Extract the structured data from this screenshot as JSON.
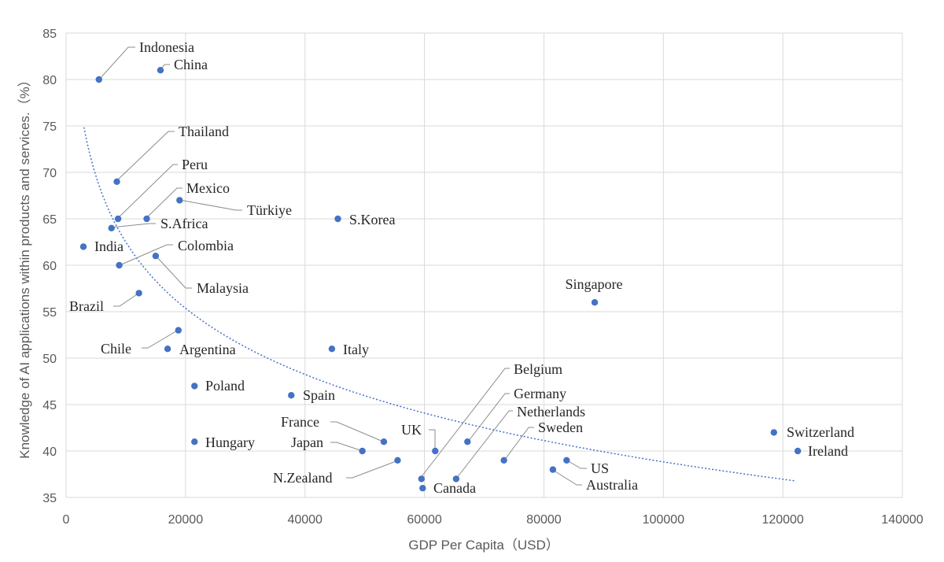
{
  "chart_data": {
    "type": "scatter",
    "title": "",
    "xlabel": "GDP Per Capita（USD）",
    "ylabel": "Knowledge of AI applications within products and services.（%）",
    "xlim": [
      0,
      140000
    ],
    "ylim": [
      35,
      85
    ],
    "x_ticks": [
      0,
      20000,
      40000,
      60000,
      80000,
      100000,
      120000,
      140000
    ],
    "y_ticks": [
      35,
      40,
      45,
      50,
      55,
      60,
      65,
      70,
      75,
      80,
      85
    ],
    "grid": true,
    "trendline": {
      "type": "logarithmic",
      "x_range": [
        3000,
        122000
      ]
    },
    "points": [
      {
        "label": "Indonesia",
        "x": 5500,
        "y": 80
      },
      {
        "label": "China",
        "x": 15800,
        "y": 81
      },
      {
        "label": "Thailand",
        "x": 8500,
        "y": 69
      },
      {
        "label": "Peru",
        "x": 8700,
        "y": 65
      },
      {
        "label": "Mexico",
        "x": 13500,
        "y": 65
      },
      {
        "label": "Türkiye",
        "x": 19000,
        "y": 67
      },
      {
        "label": "S.Africa",
        "x": 7600,
        "y": 64
      },
      {
        "label": "S.Korea",
        "x": 45500,
        "y": 65
      },
      {
        "label": "India",
        "x": 2900,
        "y": 62
      },
      {
        "label": "Colombia",
        "x": 8900,
        "y": 60
      },
      {
        "label": "Malaysia",
        "x": 15000,
        "y": 61
      },
      {
        "label": "Brazil",
        "x": 12200,
        "y": 57
      },
      {
        "label": "Singapore",
        "x": 88500,
        "y": 56
      },
      {
        "label": "Chile",
        "x": 18800,
        "y": 53
      },
      {
        "label": "Argentina",
        "x": 17000,
        "y": 51
      },
      {
        "label": "Italy",
        "x": 44500,
        "y": 51
      },
      {
        "label": "Poland",
        "x": 21500,
        "y": 47
      },
      {
        "label": "Spain",
        "x": 37700,
        "y": 46
      },
      {
        "label": "Hungary",
        "x": 21500,
        "y": 41
      },
      {
        "label": "France",
        "x": 53200,
        "y": 41
      },
      {
        "label": "Japan",
        "x": 49600,
        "y": 40
      },
      {
        "label": "UK",
        "x": 61800,
        "y": 40
      },
      {
        "label": "Belgium",
        "x": 59500,
        "y": 37
      },
      {
        "label": "Germany",
        "x": 67200,
        "y": 41
      },
      {
        "label": "Netherlands",
        "x": 65300,
        "y": 37
      },
      {
        "label": "Sweden",
        "x": 73300,
        "y": 39
      },
      {
        "label": "N.Zealand",
        "x": 55500,
        "y": 39
      },
      {
        "label": "Canada",
        "x": 59700,
        "y": 36
      },
      {
        "label": "US",
        "x": 83800,
        "y": 39
      },
      {
        "label": "Australia",
        "x": 81500,
        "y": 38
      },
      {
        "label": "Switzerland",
        "x": 118500,
        "y": 42
      },
      {
        "label": "Ireland",
        "x": 122500,
        "y": 40
      }
    ]
  }
}
